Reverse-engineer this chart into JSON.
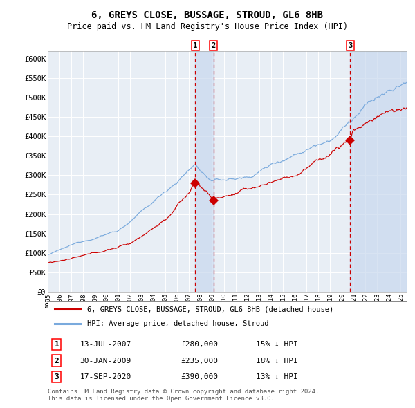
{
  "title": "6, GREYS CLOSE, BUSSAGE, STROUD, GL6 8HB",
  "subtitle": "Price paid vs. HM Land Registry's House Price Index (HPI)",
  "ylim": [
    0,
    620000
  ],
  "yticks": [
    0,
    50000,
    100000,
    150000,
    200000,
    250000,
    300000,
    350000,
    400000,
    450000,
    500000,
    550000,
    600000
  ],
  "ytick_labels": [
    "£0",
    "£50K",
    "£100K",
    "£150K",
    "£200K",
    "£250K",
    "£300K",
    "£350K",
    "£400K",
    "£450K",
    "£500K",
    "£550K",
    "£600K"
  ],
  "hpi_color": "#7aaadd",
  "price_color": "#cc0000",
  "sale1_date": 2007.53,
  "sale1_price": 280000,
  "sale2_date": 2009.08,
  "sale2_price": 235000,
  "sale3_date": 2020.71,
  "sale3_price": 390000,
  "legend_label_price": "6, GREYS CLOSE, BUSSAGE, STROUD, GL6 8HB (detached house)",
  "legend_label_hpi": "HPI: Average price, detached house, Stroud",
  "table_entries": [
    {
      "num": "1",
      "date": "13-JUL-2007",
      "price": "£280,000",
      "hpi": "15% ↓ HPI"
    },
    {
      "num": "2",
      "date": "30-JAN-2009",
      "price": "£235,000",
      "hpi": "18% ↓ HPI"
    },
    {
      "num": "3",
      "date": "17-SEP-2020",
      "price": "£390,000",
      "hpi": "13% ↓ HPI"
    }
  ],
  "footer": "Contains HM Land Registry data © Crown copyright and database right 2024.\nThis data is licensed under the Open Government Licence v3.0.",
  "background_plot": "#e8eef5",
  "background_fig": "#ffffff",
  "grid_color": "#ffffff",
  "shade_color": "#c8d8ee",
  "xlim_start": 1995,
  "xlim_end": 2025.5
}
